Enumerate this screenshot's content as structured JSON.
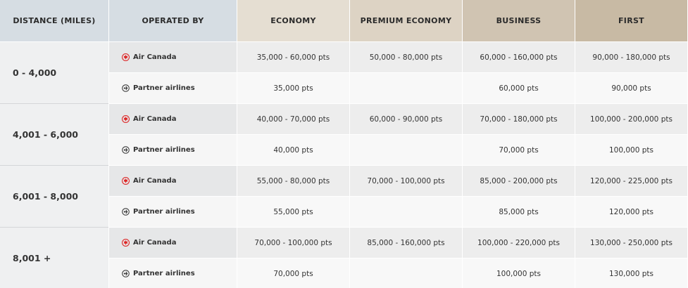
{
  "table": {
    "header": [
      "DISTANCE (MILES)",
      "OPERATED BY",
      "ECONOMY",
      "PREMIUM ECONOMY",
      "BUSINESS",
      "FIRST"
    ],
    "rows": [
      {
        "distance": "0 - 4,000",
        "operators": [
          {
            "name": "Air Canada",
            "fares": [
              "35,000 - 60,000 pts",
              "50,000 - 80,000 pts",
              "60,000 - 160,000 pts",
              "90,000 - 180,000 pts"
            ]
          },
          {
            "name": "Partner airlines",
            "fares": [
              "35,000 pts",
              null,
              "60,000 pts",
              "90,000 pts"
            ]
          }
        ]
      },
      {
        "distance": "4,001 - 6,000",
        "operators": [
          {
            "name": "Air Canada",
            "fares": [
              "40,000 - 70,000 pts",
              "60,000 - 90,000 pts",
              "70,000 - 180,000 pts",
              "100,000 - 200,000 pts"
            ]
          },
          {
            "name": "Partner airlines",
            "fares": [
              "40,000 pts",
              null,
              "70,000 pts",
              "100,000 pts"
            ]
          }
        ]
      },
      {
        "distance": "6,001 - 8,000",
        "operators": [
          {
            "name": "Air Canada",
            "fares": [
              "55,000 - 80,000 pts",
              "70,000 - 100,000 pts",
              "85,000 - 200,000 pts",
              "120,000 - 225,000 pts"
            ]
          },
          {
            "name": "Partner airlines",
            "fares": [
              "55,000 pts",
              null,
              "85,000 pts",
              "120,000 pts"
            ]
          }
        ]
      },
      {
        "distance": "8,001 +",
        "operators": [
          {
            "name": "Air Canada",
            "fares": [
              "70,000 - 100,000 pts",
              "85,000 - 160,000 pts",
              "100,000 - 220,000 pts",
              "130,000 - 250,000 pts"
            ]
          },
          {
            "name": "Partner airlines",
            "fares": [
              "70,000 pts",
              null,
              "100,000 pts",
              "130,000 pts"
            ]
          }
        ]
      }
    ]
  }
}
